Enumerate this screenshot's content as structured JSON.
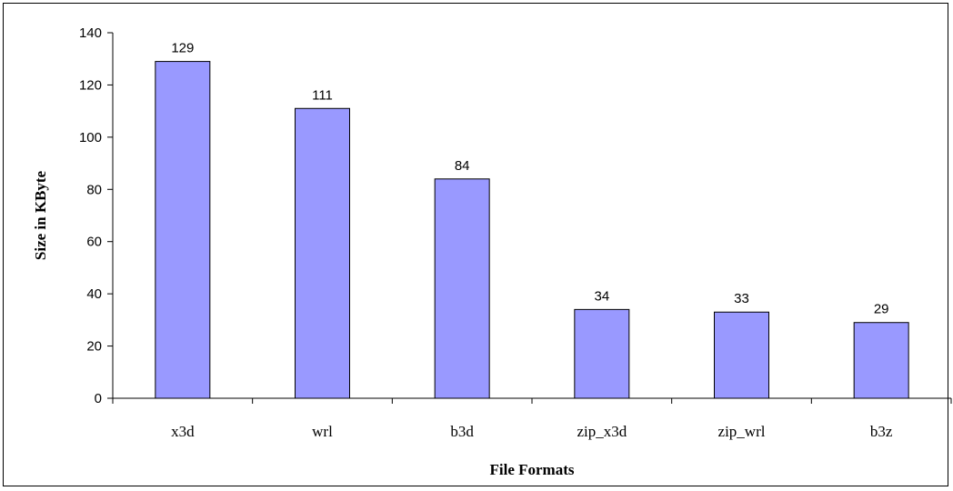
{
  "chart_data": {
    "type": "bar",
    "categories": [
      "x3d",
      "wrl",
      "b3d",
      "zip_x3d",
      "zip_wrl",
      "b3z"
    ],
    "values": [
      129,
      111,
      84,
      34,
      33,
      29
    ],
    "data_labels": [
      "129",
      "111",
      "84",
      "34",
      "33",
      "29"
    ],
    "title": "",
    "xlabel": "File Formats",
    "ylabel": "Size in KByte",
    "ylim": [
      0,
      140
    ],
    "yticks": [
      0,
      20,
      40,
      60,
      80,
      100,
      120,
      140
    ],
    "grid": false,
    "legend": "none",
    "colors": {
      "bar_fill": "#9999ff",
      "bar_stroke": "#000000",
      "axis": "#000000"
    }
  }
}
